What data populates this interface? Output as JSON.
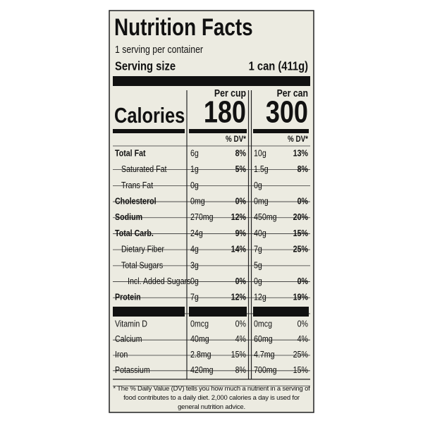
{
  "title": "Nutrition Facts",
  "servings": "1 serving per container",
  "serving_size": {
    "label": "Serving size",
    "value": "1 can (411g)"
  },
  "columns": [
    "Per cup",
    "Per can"
  ],
  "calories": {
    "label": "Calories",
    "values": [
      "180",
      "300"
    ]
  },
  "dv_header": [
    "% DV*",
    "% DV*"
  ],
  "nutrients": [
    {
      "name": "Total Fat",
      "cells": [
        {
          "amount": "6g",
          "dv": "8%"
        },
        {
          "amount": "10g",
          "dv": "13%"
        }
      ],
      "sub": [
        {
          "name": "Saturated Fat",
          "cells": [
            {
              "amount": "1g",
              "dv": "5%"
            },
            {
              "amount": "1.5g",
              "dv": "8%"
            }
          ]
        },
        {
          "name": "Trans Fat",
          "cells": [
            {
              "amount": "0g"
            },
            {
              "amount": "0g"
            }
          ]
        }
      ]
    },
    {
      "name": "Cholesterol",
      "cells": [
        {
          "amount": "0mg",
          "dv": "0%"
        },
        {
          "amount": "0mg",
          "dv": "0%"
        }
      ]
    },
    {
      "name": "Sodium",
      "cells": [
        {
          "amount": "270mg",
          "dv": "12%"
        },
        {
          "amount": "450mg",
          "dv": "20%"
        }
      ]
    },
    {
      "name": "Total Carb.",
      "cells": [
        {
          "amount": "24g",
          "dv": "9%"
        },
        {
          "amount": "40g",
          "dv": "15%"
        }
      ],
      "sub": [
        {
          "name": "Dietary Fiber",
          "cells": [
            {
              "amount": "4g",
              "dv": "14%"
            },
            {
              "amount": "7g",
              "dv": "25%"
            }
          ]
        },
        {
          "name": "Total Sugars",
          "cells": [
            {
              "amount": "3g"
            },
            {
              "amount": "5g"
            }
          ],
          "sub": [
            {
              "name": "Incl. Added Sugars",
              "cells": [
                {
                  "amount": "0g",
                  "dv": "0%"
                },
                {
                  "amount": "0g",
                  "dv": "0%"
                }
              ]
            }
          ]
        }
      ]
    },
    {
      "name": "Protein",
      "cells": [
        {
          "amount": "7g",
          "dv": "12%"
        },
        {
          "amount": "12g",
          "dv": "19%"
        }
      ]
    }
  ],
  "vitamins": [
    {
      "name": "Vitamin D",
      "cells": [
        {
          "amount": "0mcg",
          "dv": "0%"
        },
        {
          "amount": "0mcg",
          "dv": "0%"
        }
      ]
    },
    {
      "name": "Calcium",
      "cells": [
        {
          "amount": "40mg",
          "dv": "4%"
        },
        {
          "amount": "60mg",
          "dv": "4%"
        }
      ]
    },
    {
      "name": "Iron",
      "cells": [
        {
          "amount": "2.8mg",
          "dv": "15%"
        },
        {
          "amount": "4.7mg",
          "dv": "25%"
        }
      ]
    },
    {
      "name": "Potassium",
      "cells": [
        {
          "amount": "420mg",
          "dv": "8%"
        },
        {
          "amount": "700mg",
          "dv": "15%"
        }
      ]
    }
  ],
  "footnote": "* The % Daily Value (DV) tells you how much a nutrient in a serving of food contributes to a daily diet. 2,000 calories a day is used for general nutrition advice."
}
